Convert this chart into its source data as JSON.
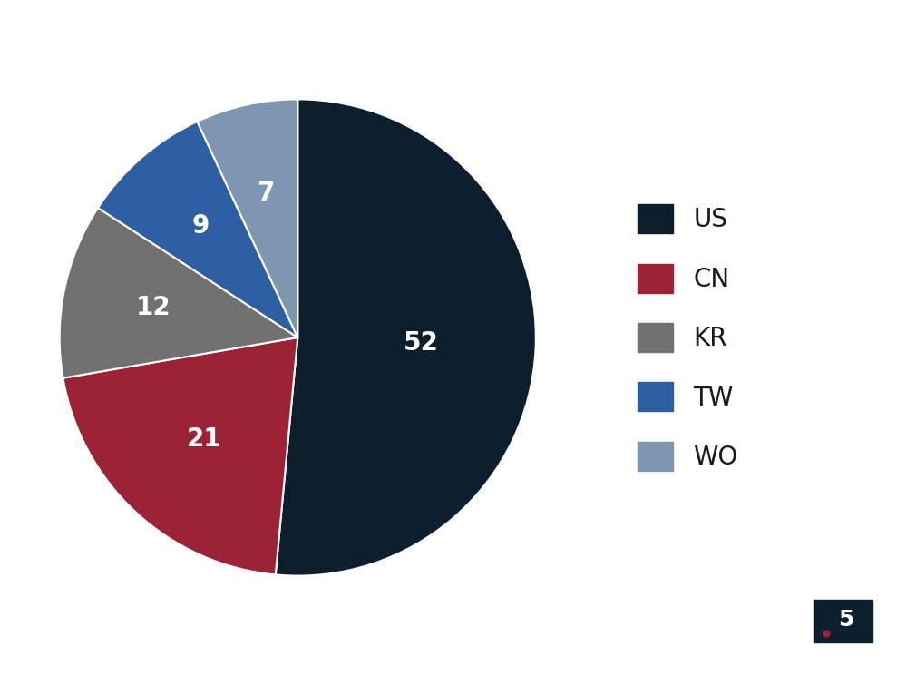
{
  "labels": [
    "US",
    "CN",
    "KR",
    "TW",
    "WO"
  ],
  "values": [
    52,
    21,
    12,
    9,
    7
  ],
  "colors": [
    "#0d1f2d",
    "#9b2335",
    "#717171",
    "#2e5fa3",
    "#7f96b0"
  ],
  "text_color": "#ffffff",
  "label_fontsize": 20,
  "legend_fontsize": 20,
  "background_color": "#ffffff",
  "startangle": 90,
  "legend_labels": [
    "US",
    "CN",
    "KR",
    "TW",
    "WO"
  ],
  "edge_color": "#ffffff",
  "edge_linewidth": 1.5
}
